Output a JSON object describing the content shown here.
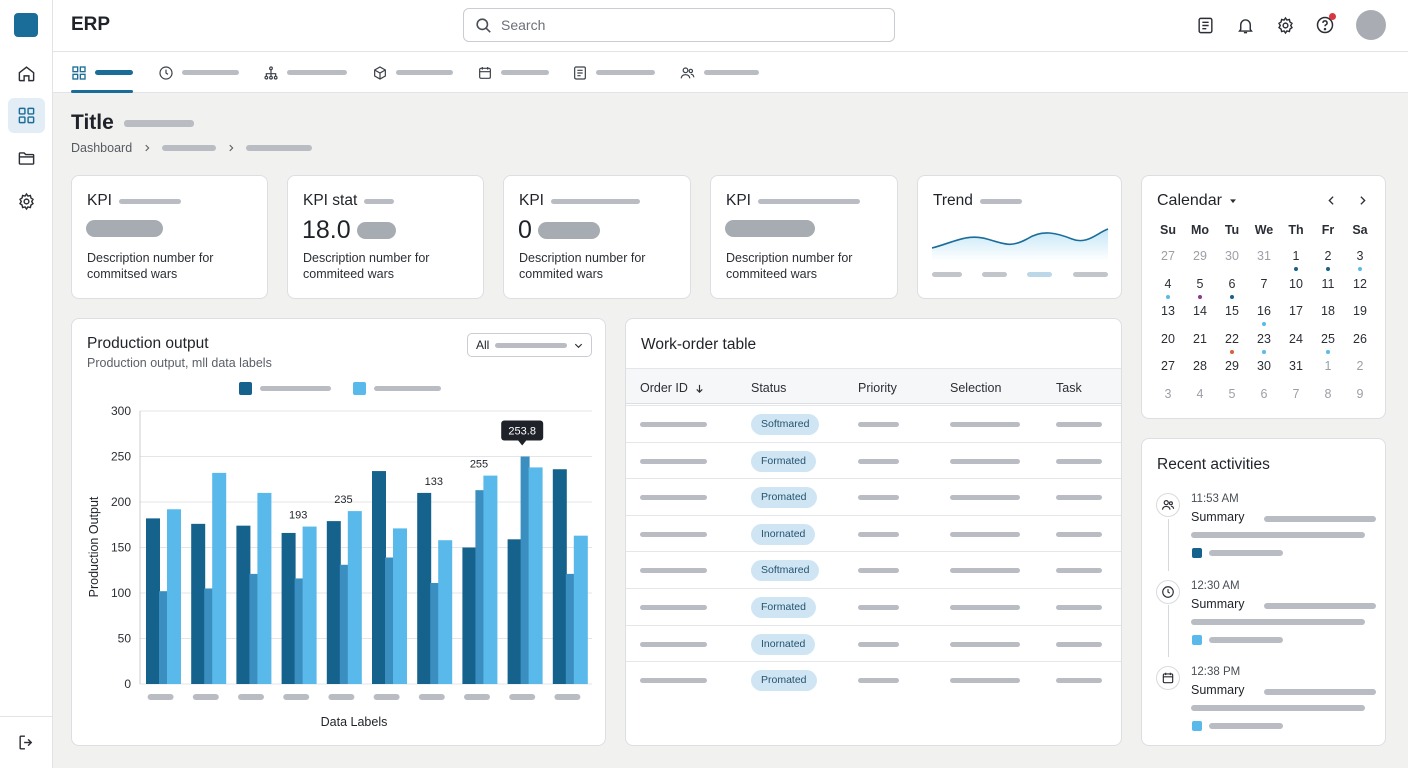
{
  "app": {
    "title": "ERP"
  },
  "search": {
    "placeholder": "Search"
  },
  "page": {
    "title": "Title",
    "breadcrumb_root": "Dashboard"
  },
  "kpis": [
    {
      "title": "KPI",
      "value": "",
      "desc": "Description number for commitsed wars"
    },
    {
      "title": "KPI stat",
      "value": "18.0",
      "desc": "Description number for commiteed wars"
    },
    {
      "title": "KPI",
      "value": "0",
      "desc": "Description number for commited wars"
    },
    {
      "title": "KPI",
      "value": "",
      "desc": "Description number for commiteed wars"
    }
  ],
  "trend": {
    "title": "Trend"
  },
  "production": {
    "title": "Production output",
    "subtitle": "Production output, mll data labels",
    "filter_value": "All"
  },
  "chart_data": {
    "type": "bar",
    "xlabel": "Data Labels",
    "ylabel": "Production Output",
    "ylim": [
      0,
      300
    ],
    "yticks": [
      0,
      50,
      100,
      150,
      200,
      250,
      300
    ],
    "grid": true,
    "legend": "top",
    "categories": [
      "",
      "",
      "",
      "",
      "",
      "",
      "",
      "",
      "",
      ""
    ],
    "series": [
      {
        "color": "#15628d",
        "values": [
          182,
          176,
          174,
          166,
          179,
          234,
          210,
          150,
          159,
          236
        ]
      },
      {
        "color": "#3b8ec0",
        "values": [
          102,
          105,
          121,
          116,
          131,
          139,
          111,
          213,
          250,
          121
        ]
      },
      {
        "color": "#58b9ea",
        "values": [
          192,
          232,
          210,
          173,
          190,
          171,
          158,
          229,
          238,
          163
        ]
      }
    ],
    "data_labels": [
      {
        "group": 3,
        "text": "193"
      },
      {
        "group": 4,
        "text": "235"
      },
      {
        "group": 6,
        "text": "133"
      },
      {
        "group": 7,
        "text": "255"
      }
    ],
    "tooltip": {
      "group": 8,
      "text": "253.8"
    }
  },
  "table": {
    "title": "Work-order table",
    "columns": [
      "Order ID",
      "Status",
      "Priority",
      "Selection",
      "Task"
    ],
    "rows": [
      {
        "status": "Softmared"
      },
      {
        "status": "Formated"
      },
      {
        "status": "Promated"
      },
      {
        "status": "Inornated"
      },
      {
        "status": "Softmared"
      },
      {
        "status": "Formated"
      },
      {
        "status": "Inornated"
      },
      {
        "status": "Promated"
      }
    ]
  },
  "calendar": {
    "title": "Calendar",
    "dow": [
      "Su",
      "Mo",
      "Tu",
      "We",
      "Th",
      "Fr",
      "Sa"
    ],
    "weeks": [
      [
        "27",
        "29",
        "30",
        "31",
        "1",
        "2",
        "3"
      ],
      [
        "4",
        "5",
        "6",
        "7",
        "10",
        "11",
        "12"
      ],
      [
        "13",
        "14",
        "15",
        "16",
        "17",
        "18",
        "19"
      ],
      [
        "20",
        "21",
        "22",
        "23",
        "24",
        "25",
        "26"
      ],
      [
        "27",
        "28",
        "29",
        "30",
        "31",
        "1",
        "2"
      ],
      [
        "3",
        "4",
        "5",
        "6",
        "7",
        "8",
        "9"
      ]
    ]
  },
  "activities": {
    "title": "Recent activities",
    "items": [
      {
        "time": "11:53 AM",
        "summary": "Summary",
        "icon": "users-icon",
        "color": "#15628d"
      },
      {
        "time": "12:30 AM",
        "summary": "Summary",
        "icon": "clock-icon",
        "color": "#58b9ea"
      },
      {
        "time": "12:38 PM",
        "summary": "Summary",
        "icon": "calendar-icon",
        "color": "#58b9ea"
      }
    ]
  }
}
